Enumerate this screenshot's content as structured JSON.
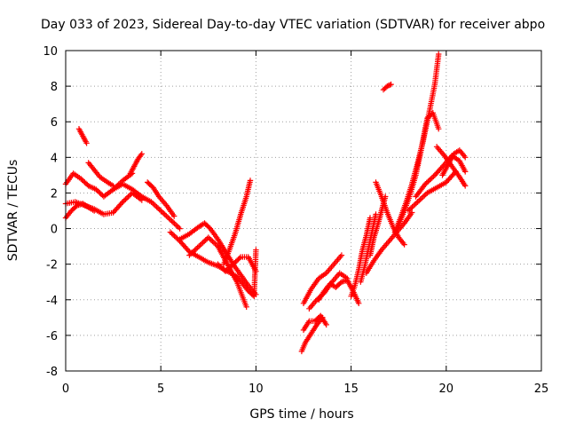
{
  "chart_data": {
    "type": "scatter",
    "title": "Day 033 of 2023, Sidereal Day-to-day VTEC variation (SDTVAR) for receiver abpo",
    "xlabel": "GPS time / hours",
    "ylabel": "SDTVAR / TECUs",
    "xlim": [
      0,
      25
    ],
    "ylim": [
      -8,
      10
    ],
    "xticks": [
      0,
      5,
      10,
      15,
      20,
      25
    ],
    "yticks": [
      -8,
      -6,
      -4,
      -2,
      0,
      2,
      4,
      6,
      8,
      10
    ],
    "grid": true,
    "marker": "+",
    "color": "#ff0000",
    "series": [
      {
        "x": [
          0.0,
          0.4,
          0.8,
          1.2,
          1.6,
          2.0,
          2.5,
          3.0,
          3.5
        ],
        "y": [
          2.5,
          3.1,
          2.8,
          2.4,
          2.2,
          1.8,
          2.2,
          2.7,
          3.1
        ]
      },
      {
        "x": [
          0.0,
          0.3,
          0.6,
          0.9,
          1.2,
          1.5
        ],
        "y": [
          0.6,
          1.0,
          1.3,
          1.4,
          1.2,
          1.0
        ]
      },
      {
        "x": [
          0.0,
          0.5,
          1.0,
          1.5,
          2.0,
          2.5,
          3.0,
          3.5,
          4.0
        ],
        "y": [
          1.4,
          1.5,
          1.3,
          1.1,
          0.8,
          0.9,
          1.5,
          2.0,
          1.6
        ]
      },
      {
        "x": [
          0.7,
          0.9,
          1.1
        ],
        "y": [
          5.6,
          5.2,
          4.8
        ]
      },
      {
        "x": [
          1.2,
          1.5,
          1.8,
          2.2,
          2.5
        ],
        "y": [
          3.7,
          3.3,
          2.9,
          2.6,
          2.4
        ]
      },
      {
        "x": [
          3.4,
          3.6,
          3.8,
          4.0
        ],
        "y": [
          3.1,
          3.5,
          3.9,
          4.2
        ]
      },
      {
        "x": [
          4.3,
          4.6,
          4.9,
          5.3,
          5.7
        ],
        "y": [
          2.6,
          2.3,
          1.8,
          1.3,
          0.7
        ]
      },
      {
        "x": [
          2.5,
          3.0,
          3.5,
          4.0,
          4.5,
          5.0,
          5.5,
          6.0
        ],
        "y": [
          2.2,
          2.5,
          2.2,
          1.8,
          1.5,
          1.0,
          0.5,
          0.0
        ]
      },
      {
        "x": [
          5.5,
          6.0,
          6.5,
          7.0,
          7.5,
          8.0,
          8.5,
          9.0
        ],
        "y": [
          -0.2,
          -0.7,
          -1.3,
          -1.6,
          -1.9,
          -2.1,
          -2.4,
          -2.7
        ]
      },
      {
        "x": [
          6.0,
          6.5,
          7.0,
          7.3,
          7.6,
          8.0,
          8.4,
          8.8,
          9.2,
          9.6,
          10.0
        ],
        "y": [
          -0.6,
          -0.3,
          0.1,
          0.3,
          0.0,
          -0.6,
          -1.3,
          -2.0,
          -2.6,
          -3.2,
          -3.7
        ]
      },
      {
        "x": [
          6.5,
          7.0,
          7.5,
          8.0,
          8.5,
          9.0,
          9.5
        ],
        "y": [
          -1.5,
          -1.0,
          -0.5,
          -1.0,
          -2.0,
          -3.0,
          -4.4
        ]
      },
      {
        "x": [
          8.3,
          8.6,
          8.9,
          9.2,
          9.5,
          9.7
        ],
        "y": [
          -2.0,
          -1.2,
          -0.3,
          0.8,
          1.8,
          2.7
        ]
      },
      {
        "x": [
          9.0,
          9.3,
          9.6,
          9.9,
          10.0
        ],
        "y": [
          -2.7,
          -3.1,
          -3.5,
          -3.8,
          -1.2
        ]
      },
      {
        "x": [
          8.0,
          8.4,
          8.8,
          9.2,
          9.6,
          10.0
        ],
        "y": [
          -2.0,
          -2.4,
          -2.0,
          -1.6,
          -1.6,
          -2.4
        ]
      },
      {
        "x": [
          12.4,
          12.6,
          12.9,
          13.2,
          13.5
        ],
        "y": [
          -6.9,
          -6.4,
          -5.9,
          -5.4,
          -5.0
        ]
      },
      {
        "x": [
          12.5,
          12.8,
          13.1,
          13.4,
          13.7
        ],
        "y": [
          -5.7,
          -5.2,
          -5.2,
          -4.9,
          -5.4
        ]
      },
      {
        "x": [
          12.5,
          12.9,
          13.3,
          13.7,
          14.1,
          14.5
        ],
        "y": [
          -4.2,
          -3.4,
          -2.8,
          -2.5,
          -2.0,
          -1.5
        ]
      },
      {
        "x": [
          12.8,
          13.2,
          13.6,
          14.0,
          14.4,
          14.8
        ],
        "y": [
          -4.5,
          -4.0,
          -3.6,
          -3.0,
          -2.5,
          -2.8
        ]
      },
      {
        "x": [
          13.3,
          13.6,
          13.9,
          14.2,
          14.5,
          14.8,
          15.1,
          15.4
        ],
        "y": [
          -4.0,
          -3.5,
          -3.1,
          -3.3,
          -3.0,
          -2.9,
          -3.5,
          -4.2
        ]
      },
      {
        "x": [
          15.0,
          15.2,
          15.4,
          15.6,
          15.8,
          16.0
        ],
        "y": [
          -3.8,
          -3.2,
          -2.3,
          -1.2,
          -0.4,
          0.6
        ]
      },
      {
        "x": [
          15.5,
          15.7,
          15.9,
          16.1,
          16.3
        ],
        "y": [
          -3.0,
          -2.2,
          -1.2,
          -0.2,
          0.8
        ]
      },
      {
        "x": [
          16.0,
          16.2,
          16.4,
          16.6,
          16.8
        ],
        "y": [
          -1.5,
          -0.5,
          0.2,
          1.0,
          1.8
        ]
      },
      {
        "x": [
          15.8,
          16.2,
          16.6,
          17.0,
          17.4,
          17.8,
          18.2
        ],
        "y": [
          -2.5,
          -1.8,
          -1.2,
          -0.7,
          -0.2,
          0.3,
          0.9
        ]
      },
      {
        "x": [
          16.3,
          16.6,
          16.9,
          17.2,
          17.5,
          17.8
        ],
        "y": [
          2.6,
          1.8,
          0.9,
          0.1,
          -0.5,
          -0.9
        ]
      },
      {
        "x": [
          16.7,
          16.9,
          17.1
        ],
        "y": [
          7.8,
          8.0,
          8.1
        ]
      },
      {
        "x": [
          17.3,
          17.6,
          17.9,
          18.2,
          18.5,
          18.8,
          19.1,
          19.4,
          19.6
        ],
        "y": [
          -0.2,
          0.6,
          1.5,
          2.5,
          3.7,
          5.0,
          6.5,
          8.1,
          9.8
        ]
      },
      {
        "x": [
          17.5,
          17.8,
          18.1,
          18.4,
          18.7,
          19.0,
          19.3,
          19.6
        ],
        "y": [
          0.2,
          1.0,
          1.9,
          3.0,
          4.5,
          6.2,
          6.5,
          5.6
        ]
      },
      {
        "x": [
          18.0,
          18.5,
          19.0,
          19.5,
          20.0,
          20.5
        ],
        "y": [
          1.0,
          1.5,
          2.0,
          2.3,
          2.6,
          3.2
        ]
      },
      {
        "x": [
          18.4,
          18.9,
          19.4,
          19.9,
          20.3,
          20.7,
          21.0
        ],
        "y": [
          1.8,
          2.5,
          3.0,
          3.6,
          4.1,
          3.8,
          3.2
        ]
      },
      {
        "x": [
          19.8,
          20.1,
          20.4,
          20.7,
          21.0
        ],
        "y": [
          3.0,
          3.6,
          4.2,
          4.4,
          4.0
        ]
      },
      {
        "x": [
          19.5,
          19.9,
          20.3,
          20.7,
          21.0
        ],
        "y": [
          4.6,
          4.1,
          3.5,
          2.9,
          2.4
        ]
      }
    ]
  }
}
